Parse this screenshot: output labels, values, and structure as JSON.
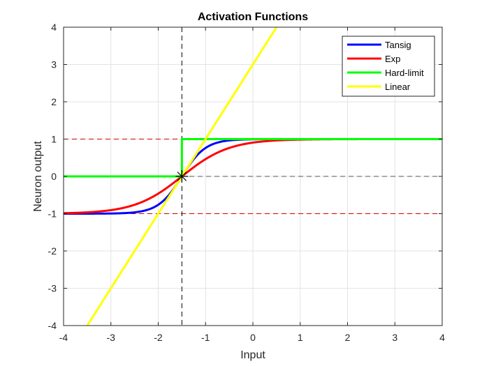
{
  "chart_data": {
    "type": "line",
    "title": "Activation Functions",
    "xlabel": "Input",
    "ylabel": "Neuron output",
    "xlim": [
      -4,
      4
    ],
    "ylim": [
      -4,
      4
    ],
    "xticks": [
      "-4",
      "-3",
      "-2",
      "-1",
      "0",
      "1",
      "2",
      "3",
      "4"
    ],
    "yticks": [
      "-4",
      "-3",
      "-2",
      "-1",
      "0",
      "1",
      "2",
      "3",
      "4"
    ],
    "grid": true,
    "legend_position": "top-right",
    "center_x": -1.5,
    "series": [
      {
        "name": "Tansig",
        "color": "#0000ff",
        "function": "tanh(2*(x+1.5))"
      },
      {
        "name": "Exp",
        "color": "#ff0000",
        "function": "tanh(x+1.5)"
      },
      {
        "name": "Hard-limit",
        "color": "#00ff00",
        "function": "step(x+1.5): 0 for x<-1.5, 1 for x>=-1.5"
      },
      {
        "name": "Linear",
        "color": "#ffff00",
        "function": "2*(x+1.5)"
      }
    ],
    "reference_lines": [
      {
        "orientation": "horizontal",
        "value": 1,
        "style": "dashed",
        "color": "#cc0000"
      },
      {
        "orientation": "horizontal",
        "value": -1,
        "style": "dashed",
        "color": "#cc0000"
      },
      {
        "orientation": "horizontal",
        "value": 0,
        "style": "dashed",
        "color": "#555555"
      },
      {
        "orientation": "vertical",
        "value": -1.5,
        "style": "dashed",
        "color": "#000000"
      }
    ],
    "marker": {
      "x": -1.5,
      "y": 0,
      "symbol": "asterisk",
      "color": "#000000"
    }
  }
}
